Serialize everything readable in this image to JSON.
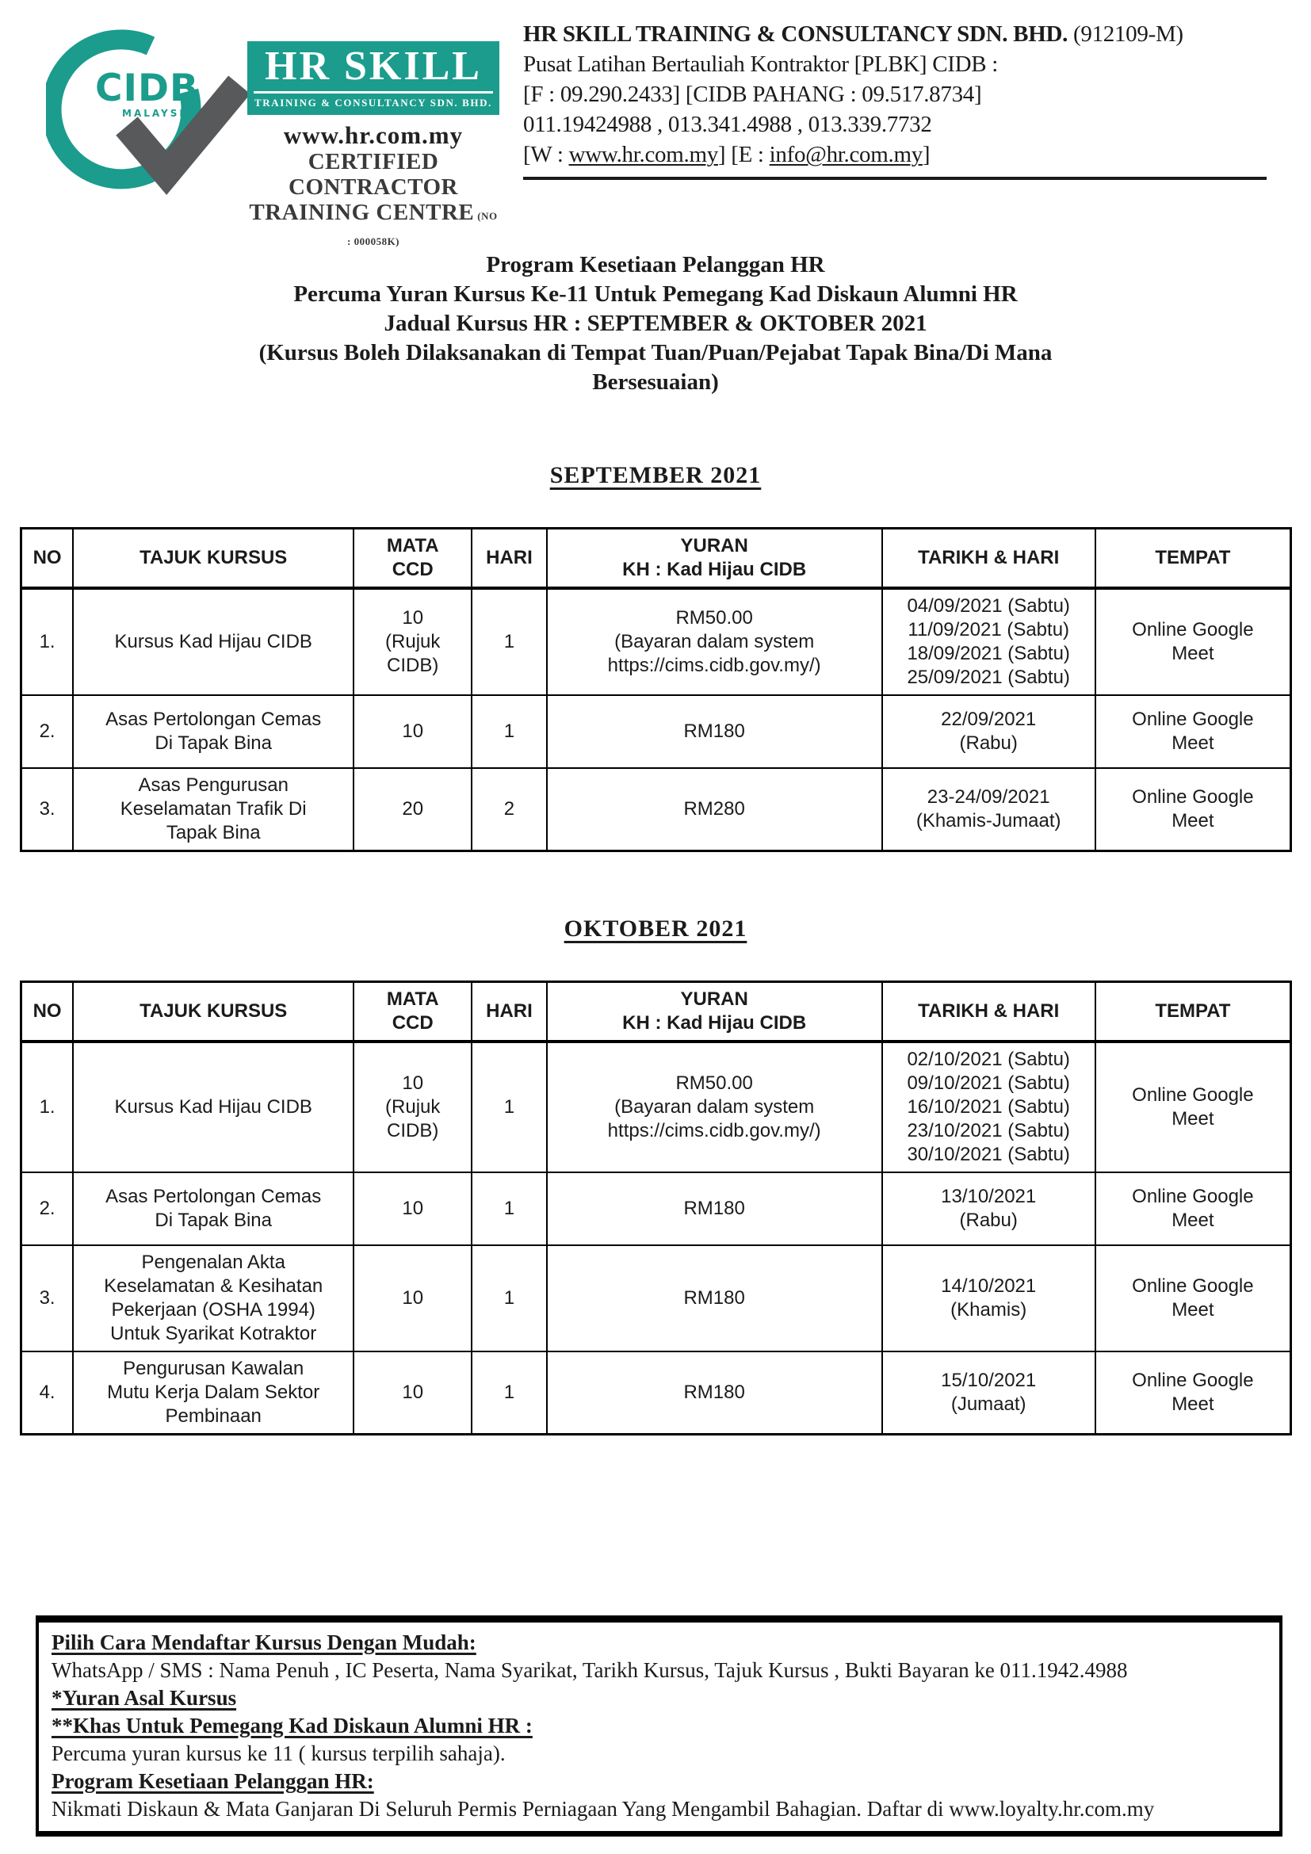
{
  "brand": {
    "teal": "#1b9c8c",
    "check_gray": "#58595b",
    "text_black": "#1b1b1b"
  },
  "header": {
    "logo": {
      "cidb_text": "CIDB",
      "cidb_sub": "MALAYSIA",
      "hrskill_title": "HR SKILL",
      "hrskill_sub": "TRAINING & CONSULTANCY SDN. BHD.",
      "website": "www.hr.com.my",
      "certified_line1": "CERTIFIED CONTRACTOR",
      "certified_line2": "TRAINING CENTRE",
      "certified_no": "(NO : 000058K)"
    },
    "company": {
      "name": "HR SKILL TRAINING & CONSULTANCY SDN. BHD.",
      "reg_no": " (912109-M)",
      "line2": "Pusat Latihan Bertauliah Kontraktor [PLBK] CIDB :",
      "line3": "[F : 09.290.2433] [CIDB PAHANG : 09.517.8734]",
      "line4": "011.19424988 , 013.341.4988 , 013.339.7732",
      "line5_prefix": "[W : ",
      "website_link": "www.hr.com.my",
      "line5_mid": "] [E : ",
      "email_link": "info@hr.com.my",
      "line5_suffix": "]"
    }
  },
  "title": {
    "line1": "Program Kesetiaan Pelanggan HR",
    "line2": "Percuma Yuran Kursus Ke-11 Untuk Pemegang Kad Diskaun Alumni HR",
    "line3": "Jadual Kursus HR : SEPTEMBER & OKTOBER 2021",
    "line4": "(Kursus Boleh Dilaksanakan di Tempat Tuan/Puan/Pejabat Tapak Bina/Di Mana",
    "line5": "Bersesuaian)"
  },
  "tables": [
    {
      "section_title": "SEPTEMBER 2021",
      "headers": [
        "NO",
        "TAJUK KURSUS",
        "MATA\nCCD",
        "HARI",
        "YURAN\nKH : Kad Hijau CIDB",
        "TARIKH & HARI",
        "TEMPAT"
      ],
      "rows": [
        [
          "1.",
          "Kursus Kad Hijau CIDB",
          "10\n(Rujuk\nCIDB)",
          "1",
          "RM50.00\n(Bayaran dalam system\nhttps://cims.cidb.gov.my/)",
          "04/09/2021 (Sabtu)\n11/09/2021 (Sabtu)\n18/09/2021 (Sabtu)\n25/09/2021 (Sabtu)",
          "Online Google\nMeet"
        ],
        [
          "2.",
          "Asas Pertolongan Cemas\nDi Tapak Bina",
          "10",
          "1",
          "RM180",
          "22/09/2021\n(Rabu)",
          "Online Google\nMeet"
        ],
        [
          "3.",
          "Asas Pengurusan\nKeselamatan Trafik Di\nTapak Bina",
          "20",
          "2",
          "RM280",
          "23-24/09/2021\n(Khamis-Jumaat)",
          "Online Google\nMeet"
        ]
      ]
    },
    {
      "section_title": "OKTOBER 2021",
      "headers": [
        "NO",
        "TAJUK KURSUS",
        "MATA\nCCD",
        "HARI",
        "YURAN\nKH : Kad Hijau CIDB",
        "TARIKH & HARI",
        "TEMPAT"
      ],
      "rows": [
        [
          "1.",
          "Kursus Kad Hijau CIDB",
          "10\n(Rujuk\nCIDB)",
          "1",
          "RM50.00\n(Bayaran dalam system\nhttps://cims.cidb.gov.my/)",
          "02/10/2021 (Sabtu)\n09/10/2021 (Sabtu)\n16/10/2021 (Sabtu)\n23/10/2021 (Sabtu)\n30/10/2021 (Sabtu)",
          "Online Google\nMeet"
        ],
        [
          "2.",
          "Asas Pertolongan Cemas\nDi Tapak Bina",
          "10",
          "1",
          "RM180",
          "13/10/2021\n(Rabu)",
          "Online Google\nMeet"
        ],
        [
          "3.",
          "Pengenalan Akta\nKeselamatan & Kesihatan\nPekerjaan (OSHA 1994)\nUntuk Syarikat Kotraktor",
          "10",
          "1",
          "RM180",
          "14/10/2021\n(Khamis)",
          "Online Google\nMeet"
        ],
        [
          "4.",
          "Pengurusan Kawalan\nMutu Kerja Dalam Sektor\nPembinaan",
          "10",
          "1",
          "RM180",
          "15/10/2021\n(Jumaat)",
          "Online Google\nMeet"
        ]
      ]
    }
  ],
  "footer": {
    "heading1": "Pilih Cara Mendaftar Kursus Dengan Mudah:",
    "line1": "WhatsApp / SMS : Nama Penuh ,  IC Peserta, Nama Syarikat, Tarikh Kursus, Tajuk Kursus , Bukti Bayaran ke 011.1942.4988",
    "heading2": "*Yuran Asal Kursus",
    "heading3": "**Khas Untuk Pemegang Kad Diskaun Alumni HR :",
    "line2": "Percuma yuran kursus ke 11 ( kursus terpilih sahaja).",
    "heading4": "Program Kesetiaan Pelanggan HR:",
    "line3": "Nikmati Diskaun & Mata Ganjaran Di Seluruh Permis Perniagaan Yang Mengambil Bahagian. Daftar di www.loyalty.hr.com.my"
  }
}
